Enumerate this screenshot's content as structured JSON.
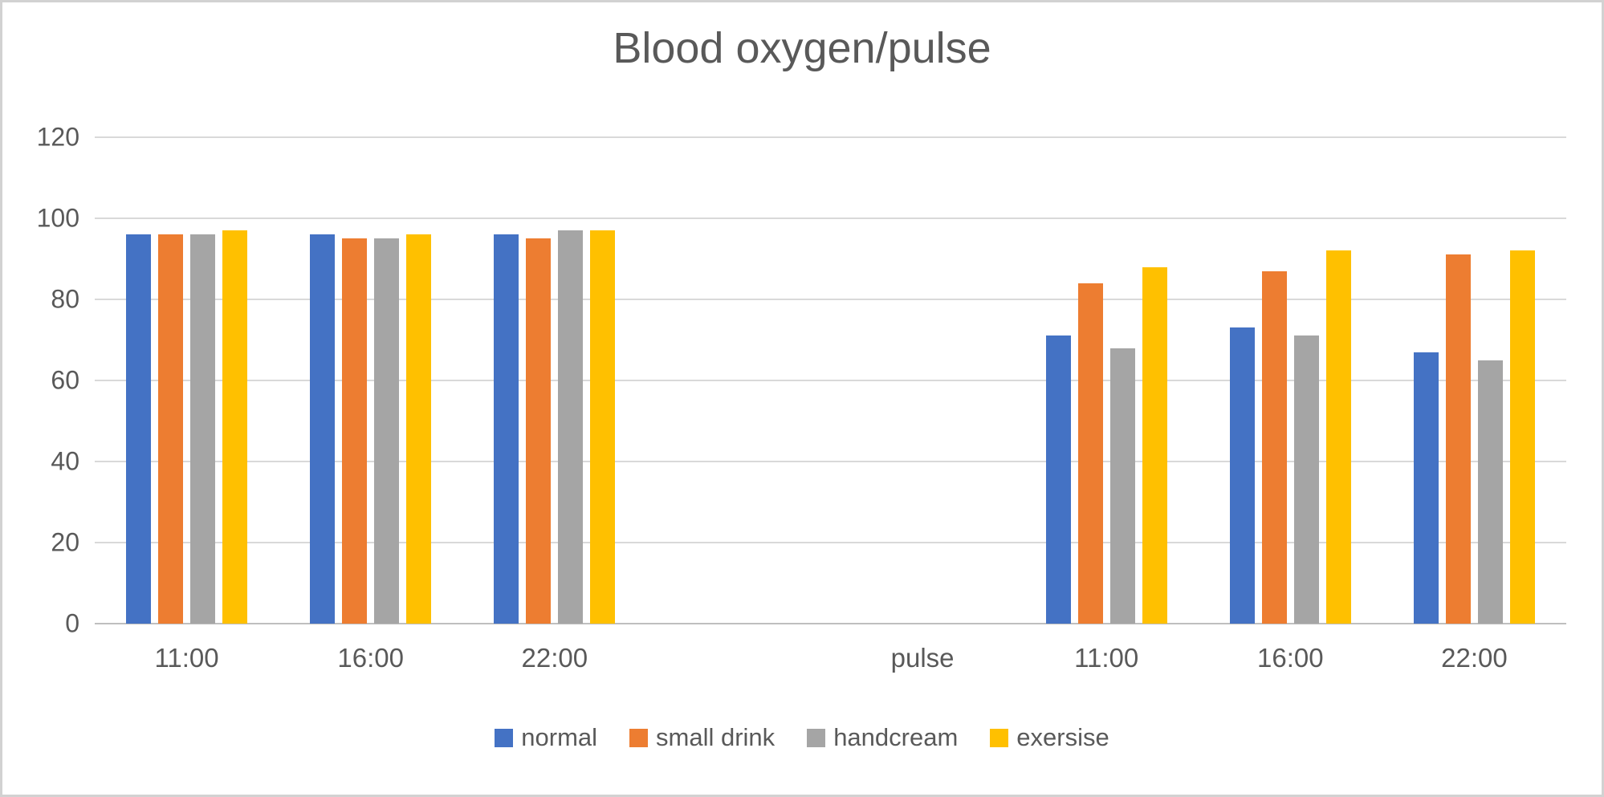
{
  "chart_data": {
    "type": "bar",
    "title": "Blood oxygen/pulse",
    "categories": [
      "11:00",
      "16:00",
      "22:00",
      "",
      "pulse",
      "11:00",
      "16:00",
      "22:00"
    ],
    "series": [
      {
        "name": "normal",
        "color": "#4472C4",
        "values": [
          96,
          96,
          96,
          null,
          null,
          71,
          73,
          67
        ]
      },
      {
        "name": "small drink",
        "color": "#ED7D31",
        "values": [
          96,
          95,
          95,
          null,
          null,
          84,
          87,
          91
        ]
      },
      {
        "name": "handcream",
        "color": "#A5A5A5",
        "values": [
          96,
          95,
          97,
          null,
          null,
          68,
          71,
          65
        ]
      },
      {
        "name": "exersise",
        "color": "#FFC000",
        "values": [
          97,
          96,
          97,
          null,
          null,
          88,
          92,
          92
        ]
      }
    ],
    "y_axis": {
      "min": 0,
      "max": 120,
      "step": 20,
      "ticks": [
        120,
        100,
        80,
        60,
        40,
        20,
        0
      ]
    },
    "legend": {
      "position": "bottom",
      "entries": [
        "normal",
        "small drink",
        "handcream",
        "exersise"
      ]
    },
    "grid": true,
    "colors": {
      "text": "#595959",
      "gridline": "#D9D9D9",
      "axis_line": "#BFBFBF",
      "frame_border": "#D2D2D2",
      "background": "#FFFFFF"
    }
  }
}
